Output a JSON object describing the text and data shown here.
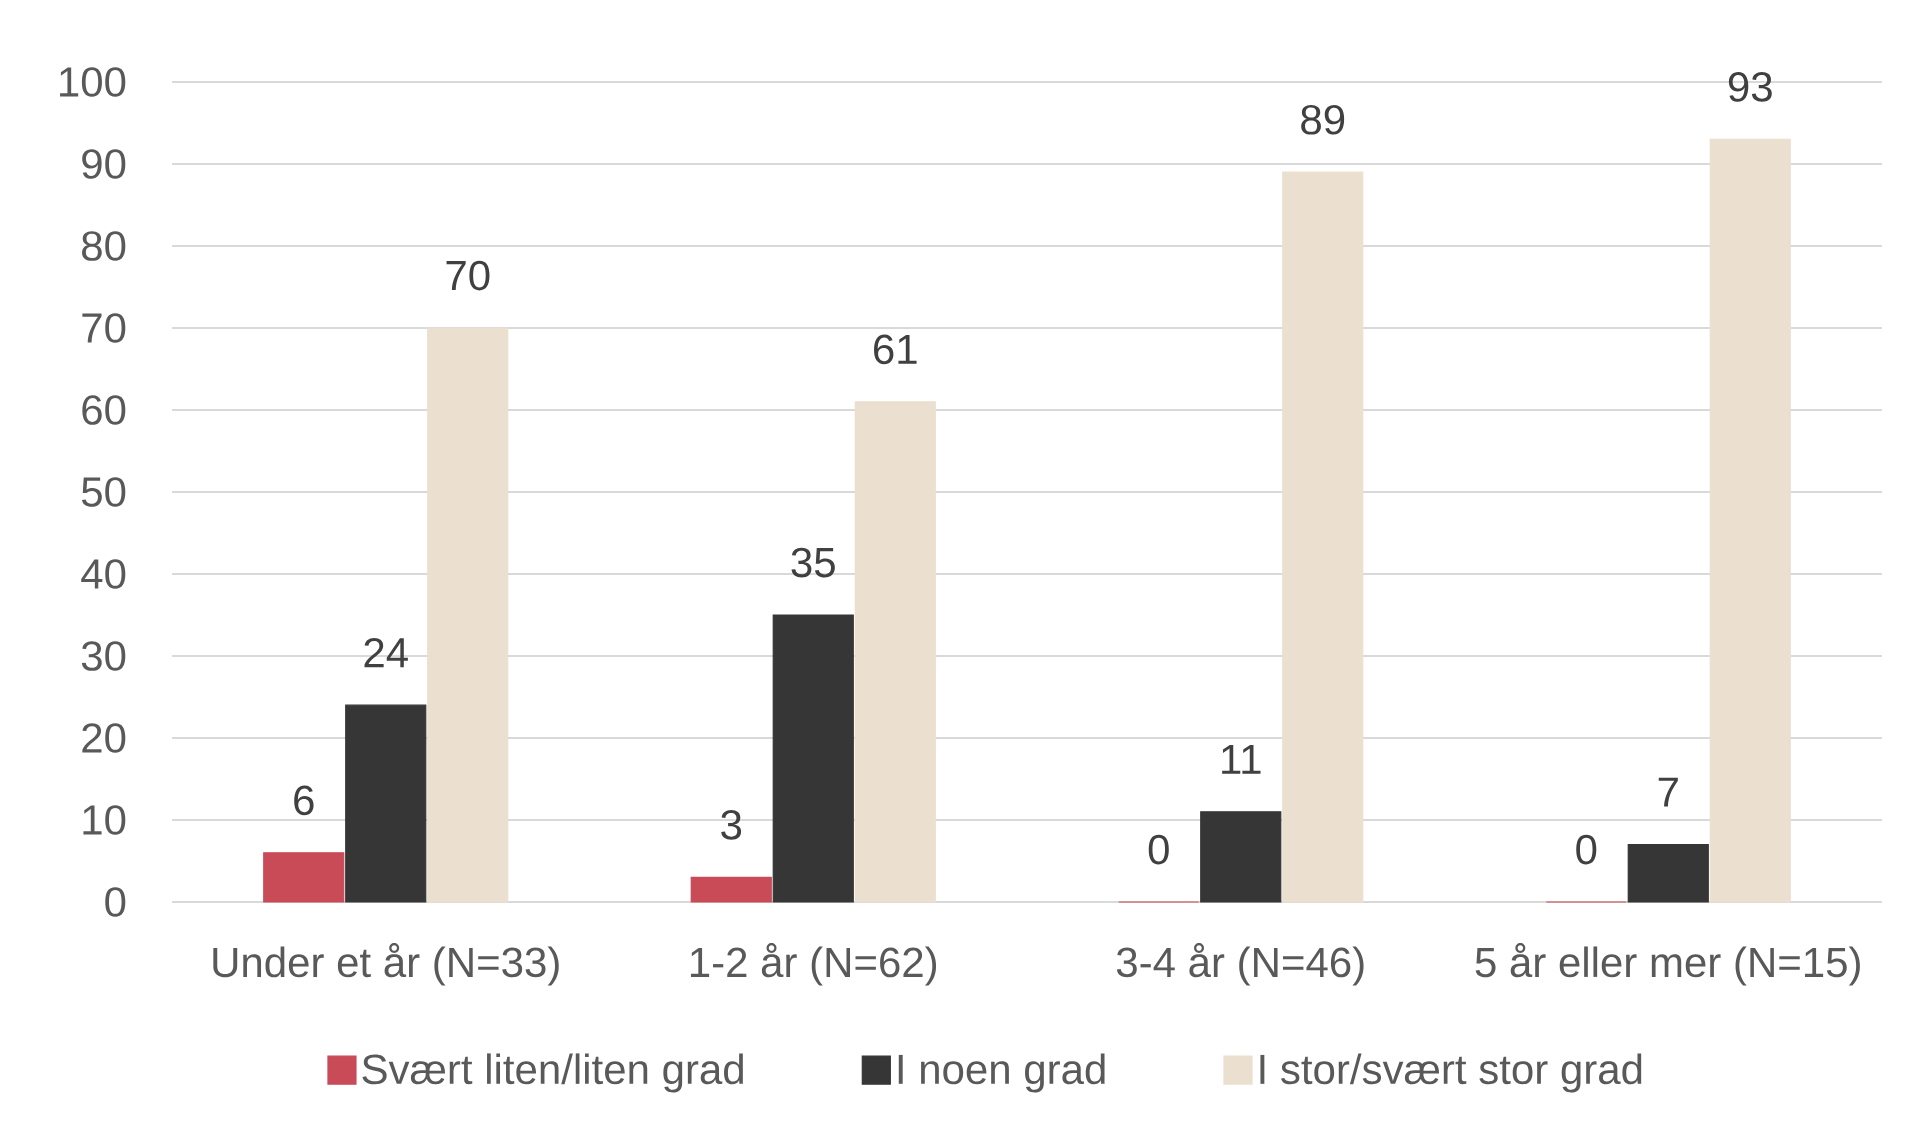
{
  "chart_data": {
    "type": "bar",
    "categories": [
      "Under et år (N=33)",
      "1-2 år (N=62)",
      "3-4 år (N=46)",
      "5 år eller mer (N=15)"
    ],
    "series": [
      {
        "name": "Svært liten/liten grad",
        "color": "#c84b57",
        "values": [
          6,
          3,
          0,
          0
        ]
      },
      {
        "name": "I noen grad",
        "color": "#363636",
        "values": [
          24,
          35,
          11,
          7
        ]
      },
      {
        "name": "I stor/svært stor grad",
        "color": "#ebdfcf",
        "values": [
          70,
          61,
          89,
          93
        ]
      }
    ],
    "ylim": [
      0,
      100
    ],
    "yticks": [
      0,
      10,
      20,
      30,
      40,
      50,
      60,
      70,
      80,
      90,
      100
    ],
    "grid": "y",
    "legend": "bottom",
    "data_labels": true
  }
}
